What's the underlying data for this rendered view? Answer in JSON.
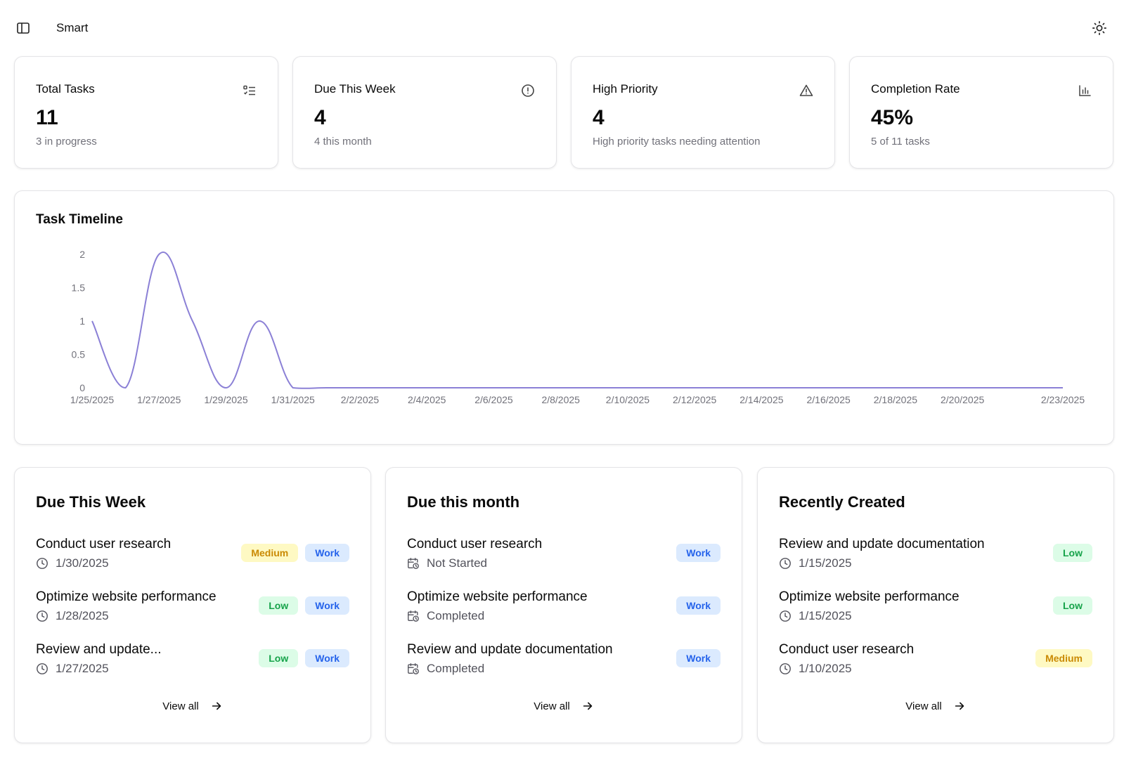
{
  "header": {
    "title": "Smart"
  },
  "stats": [
    {
      "title": "Total Tasks",
      "value": "11",
      "sub": "3 in progress",
      "icon": "list-checks-icon"
    },
    {
      "title": "Due This Week",
      "value": "4",
      "sub": "4 this month",
      "icon": "alert-circle-icon"
    },
    {
      "title": "High Priority",
      "value": "4",
      "sub": "High priority tasks needing attention",
      "icon": "alert-triangle-icon"
    },
    {
      "title": "Completion Rate",
      "value": "45%",
      "sub": "5 of 11 tasks",
      "icon": "bar-chart-icon"
    }
  ],
  "timeline": {
    "title": "Task Timeline"
  },
  "chart_data": {
    "type": "line",
    "title": "Task Timeline",
    "xlabel": "",
    "ylabel": "",
    "ylim": [
      0,
      2
    ],
    "y_ticks": [
      "0",
      "0.5",
      "1",
      "1.5",
      "2"
    ],
    "x_tick_labels": [
      "1/25/2025",
      "1/27/2025",
      "1/29/2025",
      "1/31/2025",
      "2/2/2025",
      "2/4/2025",
      "2/6/2025",
      "2/8/2025",
      "2/10/2025",
      "2/12/2025",
      "2/14/2025",
      "2/16/2025",
      "2/18/2025",
      "2/20/2025",
      "2/23/2025"
    ],
    "x": [
      "1/25/2025",
      "1/26/2025",
      "1/27/2025",
      "1/28/2025",
      "1/29/2025",
      "1/30/2025",
      "1/31/2025",
      "2/1/2025",
      "2/2/2025",
      "2/3/2025",
      "2/4/2025",
      "2/5/2025",
      "2/6/2025",
      "2/7/2025",
      "2/8/2025",
      "2/9/2025",
      "2/10/2025",
      "2/11/2025",
      "2/12/2025",
      "2/13/2025",
      "2/14/2025",
      "2/15/2025",
      "2/16/2025",
      "2/17/2025",
      "2/18/2025",
      "2/19/2025",
      "2/20/2025",
      "2/21/2025",
      "2/22/2025",
      "2/23/2025"
    ],
    "series": [
      {
        "values": [
          1,
          0,
          2,
          1,
          0,
          1,
          0,
          0,
          0,
          0,
          0,
          0,
          0,
          0,
          0,
          0,
          0,
          0,
          0,
          0,
          0,
          0,
          0,
          0,
          0,
          0,
          0,
          0,
          0,
          0
        ]
      }
    ],
    "grid": false,
    "line_color": "#8b80d6"
  },
  "lists": [
    {
      "title": "Due This Week",
      "items": [
        {
          "title": "Conduct user research",
          "meta": "1/30/2025",
          "meta_icon": "clock-icon",
          "badges": [
            {
              "label": "Medium",
              "kind": "medium"
            },
            {
              "label": "Work",
              "kind": "work"
            }
          ]
        },
        {
          "title": "Optimize website performance",
          "meta": "1/28/2025",
          "meta_icon": "clock-icon",
          "badges": [
            {
              "label": "Low",
              "kind": "low"
            },
            {
              "label": "Work",
              "kind": "work"
            }
          ]
        },
        {
          "title": "Review and update...",
          "meta": "1/27/2025",
          "meta_icon": "clock-icon",
          "badges": [
            {
              "label": "Low",
              "kind": "low"
            },
            {
              "label": "Work",
              "kind": "work"
            }
          ]
        }
      ],
      "view_all": "View all"
    },
    {
      "title": "Due this month",
      "items": [
        {
          "title": "Conduct user research",
          "meta": "Not Started",
          "meta_icon": "calendar-clock-icon",
          "badges": [
            {
              "label": "Work",
              "kind": "work"
            }
          ]
        },
        {
          "title": "Optimize website performance",
          "meta": "Completed",
          "meta_icon": "calendar-clock-icon",
          "badges": [
            {
              "label": "Work",
              "kind": "work"
            }
          ]
        },
        {
          "title": "Review and update documentation",
          "meta": "Completed",
          "meta_icon": "calendar-clock-icon",
          "badges": [
            {
              "label": "Work",
              "kind": "work"
            }
          ]
        }
      ],
      "view_all": "View all"
    },
    {
      "title": "Recently Created",
      "items": [
        {
          "title": "Review and update documentation",
          "meta": "1/15/2025",
          "meta_icon": "clock-icon",
          "badges": [
            {
              "label": "Low",
              "kind": "low"
            }
          ]
        },
        {
          "title": "Optimize website performance",
          "meta": "1/15/2025",
          "meta_icon": "clock-icon",
          "badges": [
            {
              "label": "Low",
              "kind": "low"
            }
          ]
        },
        {
          "title": "Conduct user research",
          "meta": "1/10/2025",
          "meta_icon": "clock-icon",
          "badges": [
            {
              "label": "Medium",
              "kind": "medium"
            }
          ]
        }
      ],
      "view_all": "View all"
    }
  ]
}
